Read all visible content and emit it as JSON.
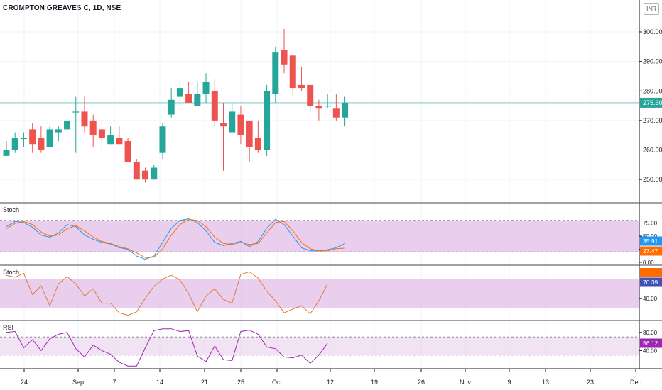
{
  "header": {
    "symbol_title": "CROMPTON GREAVES C, 1D, NSE",
    "currency_button": "INR"
  },
  "colors": {
    "up": "#26a69a",
    "down": "#ef5350",
    "stoch_k": "#2196f3",
    "stoch_d": "#ff6d00",
    "stoch2_line": "#e07b39",
    "rsi_line": "#9c27b0",
    "band_fill": "#e1bee7",
    "price_line": "#26a69a"
  },
  "chart_data": [
    {
      "type": "candlestick",
      "title": "CROMPTON GREAVES C, 1D, NSE",
      "ylim": [
        245,
        306
      ],
      "yticks": [
        "250.00",
        "260.00",
        "270.00",
        "280.00",
        "290.00",
        "300.00"
      ],
      "last_price_label": "275.60",
      "x_tick_labels": [
        "24",
        "Sep",
        "7",
        "14",
        "21",
        "25",
        "Oct",
        "12",
        "19",
        "26",
        "Nov",
        "9",
        "13",
        "23",
        "Dec"
      ],
      "candles": [
        {
          "o": 258,
          "h": 263,
          "l": 258,
          "c": 260
        },
        {
          "o": 260,
          "h": 266,
          "l": 259,
          "c": 264
        },
        {
          "o": 264,
          "h": 266,
          "l": 261,
          "c": 264
        },
        {
          "o": 267,
          "h": 269,
          "l": 259,
          "c": 262
        },
        {
          "o": 264,
          "h": 268,
          "l": 259,
          "c": 260
        },
        {
          "o": 261,
          "h": 268,
          "l": 261,
          "c": 267
        },
        {
          "o": 266,
          "h": 268,
          "l": 263,
          "c": 267
        },
        {
          "o": 267,
          "h": 272,
          "l": 265,
          "c": 270
        },
        {
          "o": 273,
          "h": 278,
          "l": 259,
          "c": 273
        },
        {
          "o": 273,
          "h": 278,
          "l": 266,
          "c": 268
        },
        {
          "o": 270,
          "h": 272,
          "l": 261,
          "c": 265
        },
        {
          "o": 267,
          "h": 271,
          "l": 260,
          "c": 264
        },
        {
          "o": 262,
          "h": 268,
          "l": 262,
          "c": 265
        },
        {
          "o": 264,
          "h": 268,
          "l": 262,
          "c": 262
        },
        {
          "o": 263,
          "h": 264,
          "l": 256,
          "c": 256
        },
        {
          "o": 256,
          "h": 257,
          "l": 250,
          "c": 250
        },
        {
          "o": 253,
          "h": 254,
          "l": 249,
          "c": 250
        },
        {
          "o": 250,
          "h": 255,
          "l": 250,
          "c": 254
        },
        {
          "o": 259,
          "h": 269,
          "l": 257,
          "c": 268
        },
        {
          "o": 272,
          "h": 281,
          "l": 271,
          "c": 277
        },
        {
          "o": 278,
          "h": 284,
          "l": 276,
          "c": 281
        },
        {
          "o": 279,
          "h": 283,
          "l": 276,
          "c": 276
        },
        {
          "o": 275,
          "h": 283,
          "l": 275,
          "c": 279
        },
        {
          "o": 279,
          "h": 286,
          "l": 276,
          "c": 283
        },
        {
          "o": 280,
          "h": 284,
          "l": 268,
          "c": 270
        },
        {
          "o": 269,
          "h": 276,
          "l": 253,
          "c": 268
        },
        {
          "o": 266,
          "h": 276,
          "l": 266,
          "c": 273
        },
        {
          "o": 272,
          "h": 275,
          "l": 262,
          "c": 265
        },
        {
          "o": 270,
          "h": 270,
          "l": 256,
          "c": 261
        },
        {
          "o": 264,
          "h": 270,
          "l": 259,
          "c": 260
        },
        {
          "o": 260,
          "h": 282,
          "l": 258,
          "c": 280
        },
        {
          "o": 279,
          "h": 295,
          "l": 276,
          "c": 293
        },
        {
          "o": 294,
          "h": 301,
          "l": 286,
          "c": 289
        },
        {
          "o": 292,
          "h": 292,
          "l": 279,
          "c": 281
        },
        {
          "o": 282,
          "h": 288,
          "l": 280,
          "c": 281
        },
        {
          "o": 282,
          "h": 282,
          "l": 273,
          "c": 275
        },
        {
          "o": 275,
          "h": 277,
          "l": 270,
          "c": 274
        },
        {
          "o": 275,
          "h": 279,
          "l": 274,
          "c": 275
        },
        {
          "o": 274,
          "h": 279,
          "l": 270,
          "c": 271
        },
        {
          "o": 271,
          "h": 278,
          "l": 268,
          "c": 276
        }
      ]
    },
    {
      "type": "line",
      "name": "Stoch",
      "ylim": [
        0,
        100
      ],
      "yticks": [
        "75.00",
        "50.00",
        "25.00",
        "0.00"
      ],
      "band": [
        20,
        80
      ],
      "value_labels": [
        "35.91",
        "27.47"
      ],
      "series": [
        {
          "values": [
            68,
            78,
            76,
            67,
            52,
            48,
            56,
            72,
            68,
            52,
            44,
            38,
            35,
            28,
            25,
            12,
            6,
            12,
            38,
            65,
            80,
            83,
            76,
            60,
            38,
            32,
            36,
            40,
            30,
            40,
            65,
            82,
            72,
            50,
            28,
            22,
            22,
            24,
            28,
            36
          ]
        },
        {
          "values": [
            64,
            74,
            78,
            72,
            58,
            50,
            52,
            64,
            70,
            60,
            48,
            40,
            36,
            30,
            26,
            18,
            9,
            10,
            26,
            52,
            72,
            82,
            80,
            68,
            48,
            36,
            34,
            38,
            34,
            36,
            56,
            76,
            78,
            60,
            38,
            26,
            22,
            22,
            26,
            27
          ]
        }
      ]
    },
    {
      "type": "line",
      "name": "Stoch",
      "ylim": [
        0,
        100
      ],
      "yticks": [
        "40.00"
      ],
      "band": [
        20,
        80
      ],
      "value_labels": [
        "70.39"
      ],
      "series": [
        {
          "values": [
            88,
            84,
            92,
            48,
            66,
            25,
            70,
            85,
            70,
            45,
            60,
            30,
            30,
            10,
            5,
            12,
            40,
            65,
            80,
            88,
            78,
            50,
            12,
            45,
            60,
            38,
            30,
            90,
            95,
            82,
            55,
            35,
            10,
            18,
            25,
            8,
            35,
            70
          ]
        }
      ]
    },
    {
      "type": "line",
      "name": "RSI",
      "ylim": [
        0,
        100
      ],
      "yticks": [
        "80.00",
        "40.00"
      ],
      "band": [
        30,
        70
      ],
      "value_labels": [
        "56.12"
      ],
      "series": [
        {
          "values": [
            80,
            82,
            46,
            64,
            40,
            66,
            76,
            80,
            44,
            26,
            52,
            40,
            32,
            14,
            6,
            6,
            46,
            84,
            88,
            88,
            82,
            84,
            28,
            16,
            50,
            20,
            18,
            82,
            85,
            76,
            48,
            44,
            26,
            24,
            30,
            12,
            30,
            56
          ]
        }
      ]
    }
  ]
}
